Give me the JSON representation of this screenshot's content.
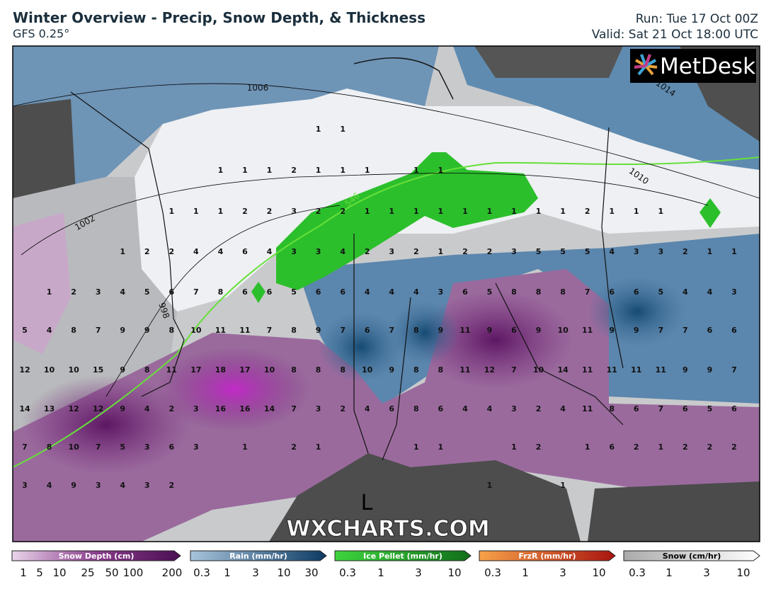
{
  "header": {
    "title": "Winter Overview - Precip, Snow Depth, & Thickness",
    "model": "GFS 0.25°",
    "run": "Run: Tue 17 Oct 00Z",
    "valid": "Valid: Sat 21 Oct 18:00 UTC"
  },
  "logo": "MetDesk",
  "watermark": "WXCHARTS.COM",
  "map": {
    "pressure_center": "L",
    "isobar_labels": [
      1006,
      1014,
      1010,
      1002,
      998
    ],
    "thickness_label": 546,
    "snow_depth_rows": [
      [
        null,
        null,
        null,
        null,
        null,
        null,
        null,
        null,
        null,
        null,
        null,
        null,
        1,
        1,
        null,
        null,
        null,
        null,
        null,
        null,
        null,
        null,
        null,
        null,
        null,
        null,
        null,
        null,
        null,
        null
      ],
      [
        null,
        null,
        null,
        null,
        null,
        null,
        null,
        null,
        1,
        1,
        1,
        2,
        1,
        1,
        1,
        null,
        1,
        1,
        null,
        null,
        null,
        null,
        null,
        null,
        null,
        null,
        null,
        null,
        null,
        null
      ],
      [
        null,
        null,
        null,
        null,
        null,
        null,
        1,
        1,
        1,
        2,
        2,
        3,
        2,
        2,
        1,
        1,
        1,
        1,
        1,
        1,
        1,
        1,
        1,
        2,
        1,
        1,
        1,
        null,
        null,
        null
      ],
      [
        null,
        null,
        null,
        null,
        1,
        2,
        2,
        4,
        4,
        6,
        4,
        3,
        3,
        4,
        2,
        3,
        2,
        1,
        2,
        2,
        3,
        5,
        5,
        5,
        4,
        3,
        3,
        2,
        1,
        1
      ],
      [
        null,
        1,
        2,
        3,
        4,
        5,
        6,
        7,
        8,
        6,
        6,
        5,
        6,
        6,
        4,
        4,
        4,
        3,
        6,
        5,
        8,
        8,
        8,
        7,
        6,
        6,
        5,
        4,
        4,
        3
      ],
      [
        5,
        4,
        8,
        7,
        9,
        9,
        8,
        10,
        11,
        11,
        7,
        8,
        9,
        7,
        6,
        7,
        8,
        9,
        11,
        9,
        6,
        9,
        10,
        11,
        9,
        9,
        7,
        7,
        6,
        6
      ],
      [
        12,
        10,
        10,
        15,
        9,
        8,
        11,
        17,
        18,
        17,
        10,
        8,
        8,
        8,
        10,
        9,
        8,
        8,
        11,
        12,
        7,
        10,
        14,
        11,
        11,
        11,
        11,
        9,
        9,
        7
      ],
      [
        14,
        13,
        12,
        12,
        9,
        4,
        2,
        3,
        16,
        16,
        14,
        7,
        3,
        2,
        4,
        6,
        8,
        6,
        4,
        4,
        3,
        2,
        4,
        11,
        8,
        6,
        7,
        6,
        5,
        6
      ],
      [
        7,
        8,
        10,
        7,
        5,
        3,
        6,
        3,
        null,
        1,
        null,
        2,
        1,
        null,
        null,
        null,
        1,
        1,
        null,
        null,
        1,
        2,
        null,
        1,
        6,
        2,
        1,
        2,
        2,
        2
      ],
      [
        3,
        4,
        9,
        3,
        4,
        3,
        2,
        null,
        null,
        null,
        null,
        null,
        null,
        null,
        null,
        null,
        null,
        null,
        null,
        1,
        null,
        null,
        1,
        null,
        null,
        null,
        null,
        null,
        null,
        null
      ]
    ]
  },
  "legend": [
    {
      "name": "Snow Depth (cm)",
      "ticks": [
        1,
        5,
        10,
        25,
        50,
        100,
        200
      ]
    },
    {
      "name": "Rain (mm/hr)",
      "ticks": [
        0.3,
        1,
        3,
        10,
        30
      ]
    },
    {
      "name": "Ice Pellet (mm/hr)",
      "ticks": [
        0.3,
        1,
        3,
        10
      ]
    },
    {
      "name": "FrzR (mm/hr)",
      "ticks": [
        0.3,
        1,
        3,
        10
      ]
    },
    {
      "name": "Snow (cm/hr)",
      "ticks": [
        0.3,
        1,
        3,
        10
      ]
    }
  ]
}
